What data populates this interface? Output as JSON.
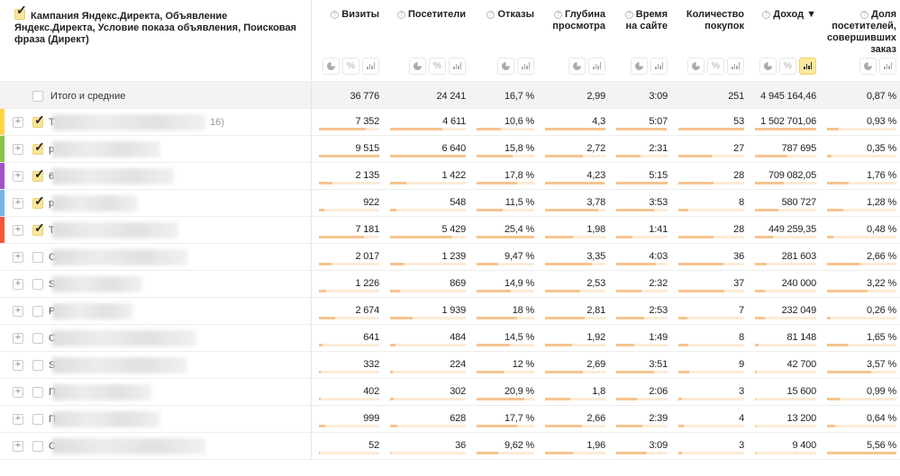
{
  "header": {
    "dimension_title": "Кампания Яндекс.Директа, Объявление Яндекс.Директа, Условие показа объявления, Поисковая фраза (Директ)",
    "columns": [
      {
        "label": "Визиты",
        "help": true,
        "icons": [
          "pie",
          "percent",
          "bars"
        ]
      },
      {
        "label": "Посетители",
        "help": true,
        "icons": [
          "pie",
          "percent",
          "bars"
        ]
      },
      {
        "label": "Отказы",
        "help": true,
        "icons": [
          "pie",
          "bars"
        ]
      },
      {
        "label": "Глубина просмотра",
        "help": true,
        "icons": [
          "pie",
          "bars"
        ]
      },
      {
        "label": "Время на сайте",
        "help": true,
        "icons": [
          "pie",
          "bars"
        ]
      },
      {
        "label": "Количество покупок",
        "help": false,
        "icons": [
          "pie",
          "percent",
          "bars"
        ]
      },
      {
        "label": "Доход ▼",
        "help": true,
        "icons": [
          "pie",
          "percent",
          "bars-active"
        ]
      },
      {
        "label": "Доля посетителей, совершивших заказ",
        "help": true,
        "icons": [
          "pie",
          "bars"
        ]
      }
    ]
  },
  "totals": {
    "label": "Итого и средние",
    "values": [
      "36 776",
      "24 241",
      "16,7 %",
      "2,99",
      "3:09",
      "251",
      "4 945 164,46",
      "0,87 %"
    ]
  },
  "colors": {
    "stripes": [
      "#fbd44b",
      "#8bc34a",
      "#a152c9",
      "#74b5e8",
      "#f4583c"
    ],
    "bar": "#f6c48e",
    "bar_bg": "#fdebd6",
    "active": "#fde9a0"
  },
  "rows": [
    {
      "initial": "T",
      "suffix": "16)",
      "checked": true,
      "values": [
        "7 352",
        "4 611",
        "10,6 %",
        "4,3",
        "5:07",
        "53",
        "1 502 701,06",
        "0,93 %"
      ]
    },
    {
      "initial": "p",
      "checked": true,
      "values": [
        "9 515",
        "6 640",
        "15,8 %",
        "2,72",
        "2:31",
        "27",
        "787 695",
        "0,35 %"
      ]
    },
    {
      "initial": "6",
      "checked": true,
      "values": [
        "2 135",
        "1 422",
        "17,8 %",
        "4,23",
        "5:15",
        "28",
        "709 082,05",
        "1,76 %"
      ]
    },
    {
      "initial": "p",
      "checked": true,
      "values": [
        "922",
        "548",
        "11,5 %",
        "3,78",
        "3:53",
        "8",
        "580 727",
        "1,28 %"
      ]
    },
    {
      "initial": "T",
      "checked": true,
      "values": [
        "7 181",
        "5 429",
        "25,4 %",
        "1,98",
        "1:41",
        "28",
        "449 259,35",
        "0,48 %"
      ]
    },
    {
      "initial": "C",
      "checked": false,
      "values": [
        "2 017",
        "1 239",
        "9,47 %",
        "3,35",
        "4:03",
        "36",
        "281 603",
        "2,66 %"
      ]
    },
    {
      "initial": "S",
      "checked": false,
      "values": [
        "1 226",
        "869",
        "14,9 %",
        "2,53",
        "2:32",
        "37",
        "240 000",
        "3,22 %"
      ]
    },
    {
      "initial": "P",
      "checked": false,
      "values": [
        "2 674",
        "1 939",
        "18 %",
        "2,81",
        "2:53",
        "7",
        "232 049",
        "0,26 %"
      ]
    },
    {
      "initial": "C",
      "checked": false,
      "values": [
        "641",
        "484",
        "14,5 %",
        "1,92",
        "1:49",
        "8",
        "81 148",
        "1,65 %"
      ]
    },
    {
      "initial": "S",
      "checked": false,
      "values": [
        "332",
        "224",
        "12 %",
        "2,69",
        "3:51",
        "9",
        "42 700",
        "3,57 %"
      ]
    },
    {
      "initial": "П",
      "checked": false,
      "values": [
        "402",
        "302",
        "20,9 %",
        "1,8",
        "2:06",
        "3",
        "15 600",
        "0,99 %"
      ]
    },
    {
      "initial": "П",
      "checked": false,
      "values": [
        "999",
        "628",
        "17,7 %",
        "2,66",
        "2:39",
        "4",
        "13 200",
        "0,64 %"
      ]
    },
    {
      "initial": "C",
      "checked": false,
      "values": [
        "52",
        "36",
        "9,62 %",
        "1,96",
        "3:09",
        "3",
        "9 400",
        "5,56 %"
      ]
    }
  ]
}
